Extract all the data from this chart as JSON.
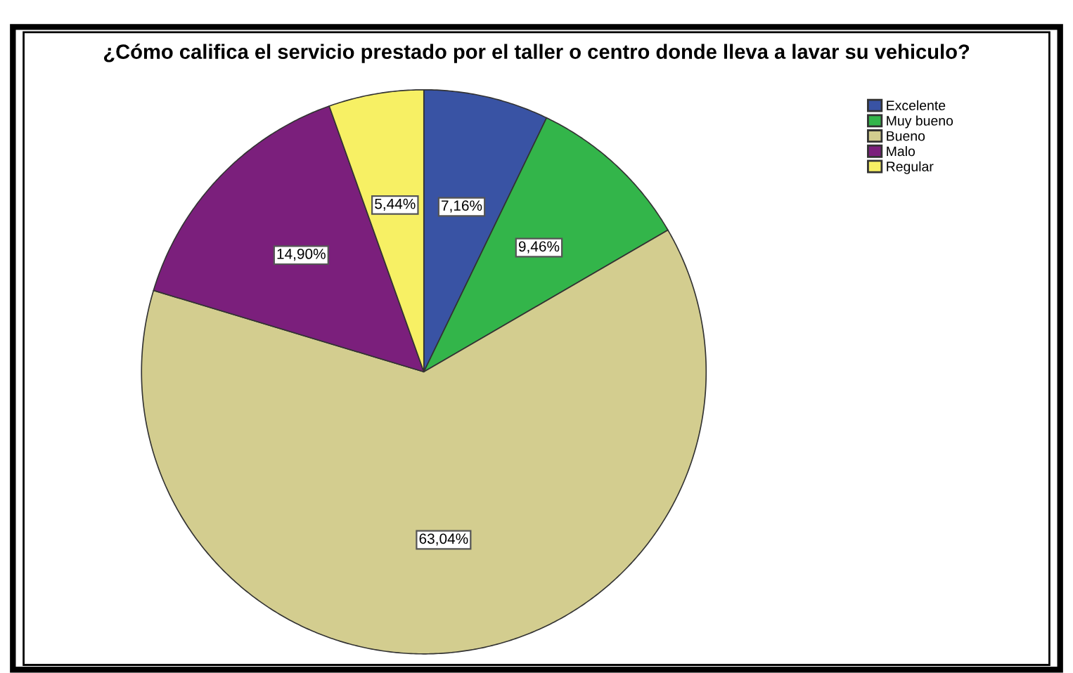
{
  "chart_data": {
    "type": "pie",
    "title": "¿Cómo califica el servicio prestado por el taller o centro donde lleva a lavar su vehiculo?",
    "categories": [
      "Excelente",
      "Muy bueno",
      "Bueno",
      "Malo",
      "Regular"
    ],
    "values": [
      7.16,
      9.46,
      63.04,
      14.9,
      5.44
    ],
    "value_labels": [
      "7,16%",
      "9,46%",
      "63,04%",
      "14,90%",
      "5,44%"
    ],
    "colors": [
      "#3953a4",
      "#33b54a",
      "#d3cd8f",
      "#7b1f7c",
      "#f7f064"
    ],
    "legend": "top right"
  }
}
